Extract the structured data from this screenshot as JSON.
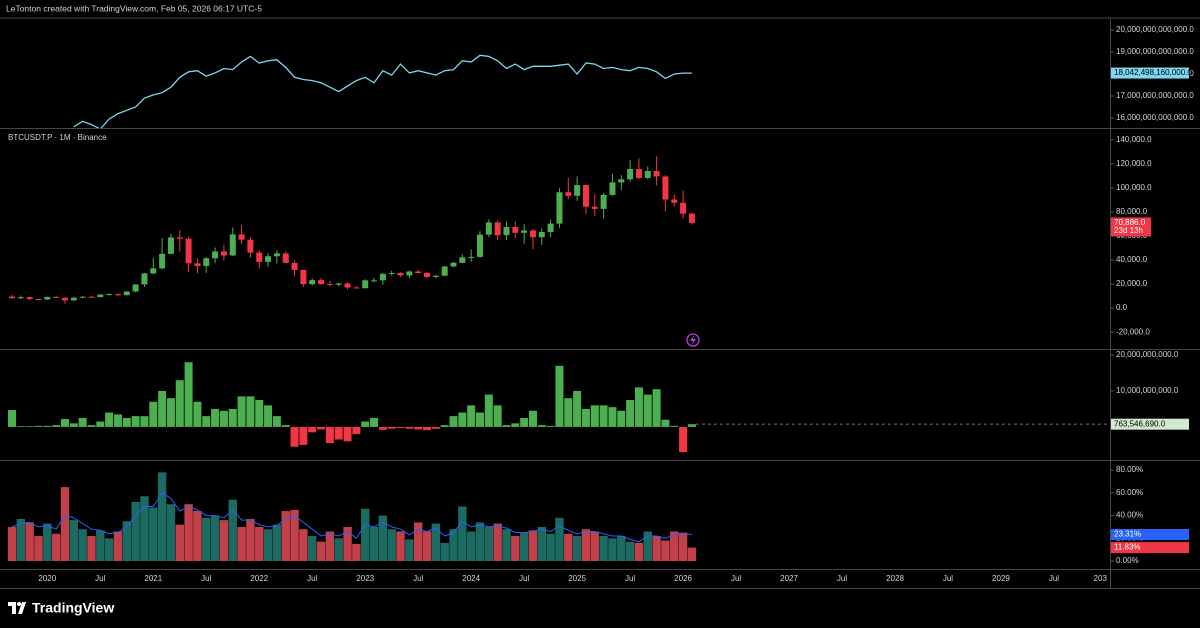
{
  "header": {
    "credit": "LeTonton created with TradingView.com, Feb 05, 2026 06:17 UTC-5"
  },
  "footer": {
    "brand": "TradingView"
  },
  "x_axis": {
    "labels": [
      "2020",
      "Jul",
      "2021",
      "Jul",
      "2022",
      "Jul",
      "2023",
      "Jul",
      "2024",
      "Jul",
      "2025",
      "Jul",
      "2026",
      "Jul",
      "2027",
      "Jul",
      "2028",
      "Jul",
      "2029",
      "Jul",
      "203"
    ]
  },
  "chart_data": [
    {
      "type": "line",
      "color": "#7fd6f0",
      "values": [
        null,
        null,
        null,
        null,
        null,
        null,
        null,
        15600000000000,
        15850000000000,
        15700000000000,
        15500000000000,
        15950000000000,
        16200000000000,
        16350000000000,
        16500000000000,
        16900000000000,
        17050000000000,
        17150000000000,
        17400000000000,
        17850000000000,
        18100000000000,
        18150000000000,
        17900000000000,
        18050000000000,
        18250000000000,
        18200000000000,
        18550000000000,
        18800000000000,
        18500000000000,
        18600000000000,
        18650000000000,
        18300000000000,
        17850000000000,
        17750000000000,
        17700000000000,
        17600000000000,
        17400000000000,
        17200000000000,
        17450000000000,
        17700000000000,
        17850000000000,
        17600000000000,
        18150000000000,
        17950000000000,
        18450000000000,
        18050000000000,
        18150000000000,
        18050000000000,
        17950000000000,
        18150000000000,
        18200000000000,
        18600000000000,
        18550000000000,
        18850000000000,
        18800000000000,
        18600000000000,
        18250000000000,
        18450000000000,
        18200000000000,
        18350000000000,
        18350000000000,
        18350000000000,
        18400000000000,
        18450000000000,
        18000000000000,
        18500000000000,
        18450000000000,
        18250000000000,
        18300000000000,
        18200000000000,
        18150000000000,
        18300000000000,
        18250000000000,
        18100000000000,
        17800000000000,
        18000000000000,
        18040000000000,
        18042498160000
      ],
      "value_label": "18,042,498,160,000.0",
      "ylim": [
        15545000000000,
        20545000000000
      ],
      "yticks": [
        {
          "value": 20000000000000,
          "label": "20,000,000,000,000.0"
        },
        {
          "value": 19000000000000,
          "label": "19,000,000,000,000.0"
        },
        {
          "value": 18000000000000,
          "label": "18,000,000,000,000.0"
        },
        {
          "value": 17000000000000,
          "label": "17,000,000,000,000.0"
        },
        {
          "value": 16000000000000,
          "label": "16,000,000,000,000.0"
        }
      ]
    },
    {
      "type": "candlestick",
      "title": "BTCUSDT.P · 1M · Binance",
      "up_color": "#4caf50",
      "down_color": "#f23645",
      "open": [
        9600,
        8300,
        9150,
        7550,
        7200,
        9350,
        8550,
        6400,
        8650,
        9450,
        9140,
        11350,
        11650,
        10780,
        13800,
        19700,
        28900,
        33100,
        45150,
        58800,
        57700,
        37300,
        35050,
        41460,
        47100,
        43800,
        61300,
        56900,
        46200,
        38450,
        43150,
        45500,
        37640,
        31790,
        19930,
        23300,
        20050,
        19420,
        20490,
        17160,
        16540,
        23120,
        23140,
        28470,
        29230,
        27210,
        30470,
        29230,
        25940,
        26960,
        34640,
        37720,
        42280,
        42580,
        61130,
        71290,
        60670,
        67490,
        62670,
        64620,
        58970,
        63330,
        70290,
        96400,
        93430,
        102400,
        84350,
        82550,
        94200,
        104600,
        107150,
        115750,
        108250,
        114050,
        109550,
        90350,
        87650,
        78600
      ],
      "high": [
        10900,
        10500,
        9500,
        7750,
        9600,
        10500,
        9200,
        9450,
        10100,
        10400,
        11450,
        12480,
        12100,
        14100,
        19900,
        29300,
        41950,
        58350,
        61780,
        64850,
        59600,
        41300,
        42400,
        50500,
        52900,
        67000,
        69000,
        59050,
        47990,
        45800,
        48200,
        47450,
        40000,
        31950,
        24650,
        25200,
        22800,
        21100,
        21450,
        18400,
        23950,
        25250,
        29200,
        31000,
        29850,
        31430,
        31800,
        30200,
        27500,
        35200,
        38450,
        44700,
        48970,
        64000,
        73800,
        72800,
        72000,
        71950,
        70000,
        65600,
        66500,
        73600,
        99800,
        108350,
        109600,
        102750,
        95000,
        95750,
        111950,
        110500,
        123200,
        124500,
        117900,
        126200,
        110600,
        94600,
        97900,
        79300
      ],
      "low": [
        7700,
        7300,
        6500,
        6400,
        6850,
        8450,
        3600,
        6150,
        8100,
        8850,
        8950,
        10550,
        9850,
        10400,
        13200,
        17600,
        28100,
        32300,
        44950,
        47050,
        30000,
        28800,
        29300,
        37300,
        39600,
        43300,
        53250,
        42000,
        32900,
        34300,
        37150,
        37700,
        26700,
        17600,
        18800,
        19550,
        18150,
        18200,
        15500,
        16250,
        16500,
        21350,
        19550,
        26950,
        25800,
        24800,
        28860,
        25100,
        24900,
        26550,
        34100,
        37600,
        38550,
        41880,
        59000,
        56550,
        56500,
        58400,
        53500,
        49000,
        52550,
        58870,
        66800,
        90500,
        89200,
        78250,
        76600,
        74500,
        93350,
        98200,
        105100,
        107300,
        107250,
        102000,
        80600,
        84400,
        74500,
        69500
      ],
      "close": [
        8300,
        9150,
        7550,
        7200,
        9350,
        8550,
        6400,
        8650,
        9450,
        9140,
        11350,
        11650,
        10780,
        13800,
        19700,
        28900,
        33100,
        45150,
        58800,
        57700,
        37300,
        35050,
        41460,
        47100,
        43800,
        61300,
        56900,
        46200,
        38450,
        43150,
        45500,
        37640,
        31790,
        19930,
        23300,
        20050,
        19420,
        20490,
        17160,
        16540,
        23120,
        23140,
        28470,
        29230,
        27210,
        30470,
        29230,
        25940,
        26960,
        34640,
        37720,
        42280,
        42580,
        61130,
        71290,
        60670,
        67490,
        62670,
        64620,
        58970,
        63330,
        70290,
        96400,
        93430,
        102400,
        84350,
        82550,
        94200,
        104600,
        107150,
        115750,
        108250,
        114050,
        109550,
        90350,
        87650,
        78600,
        70886
      ],
      "close_label": "70,886.0",
      "countdown": "23d 13h",
      "ylim": [
        -34000,
        149000
      ],
      "yticks": [
        {
          "value": 140000,
          "label": "140,000.0"
        },
        {
          "value": 120000,
          "label": "120,000.0"
        },
        {
          "value": 100000,
          "label": "100,000.0"
        },
        {
          "value": 80000,
          "label": "80,000.0"
        },
        {
          "value": 60000,
          "label": "60,000.0"
        },
        {
          "value": 40000,
          "label": "40,000.0"
        },
        {
          "value": 20000,
          "label": "20,000.0"
        },
        {
          "value": 0,
          "label": "0.0"
        },
        {
          "value": -20000,
          "label": "-20,000.0"
        }
      ]
    },
    {
      "type": "bar",
      "up_color": "#4caf50",
      "down_color": "#f23645",
      "values": [
        4700000000,
        200000000,
        200000000,
        300000000,
        300000000,
        500000000,
        2200000000,
        1000000000,
        2500000000,
        500000000,
        1500000000,
        4000000000,
        3500000000,
        2500000000,
        3000000000,
        3000000000,
        7000000000,
        10000000000,
        8000000000,
        13000000000,
        18000000000,
        7000000000,
        3000000000,
        5000000000,
        4500000000,
        5000000000,
        8500000000,
        8500000000,
        7500000000,
        6000000000,
        3000000000,
        500000000,
        -5500000000,
        -5000000000,
        -1500000000,
        -700000000,
        -4500000000,
        -3500000000,
        -4000000000,
        -2000000000,
        1500000000,
        2500000000,
        -800000000,
        -500000000,
        -300000000,
        -500000000,
        -700000000,
        -900000000,
        -500000000,
        500000000,
        3000000000,
        4000000000,
        6000000000,
        4000000000,
        9000000000,
        6000000000,
        500000000,
        1000000000,
        2500000000,
        4500000000,
        500000000,
        300000000,
        17000000000,
        8000000000,
        10000000000,
        5000000000,
        6000000000,
        6000000000,
        5500000000,
        4500000000,
        7500000000,
        11000000000,
        9000000000,
        10500000000,
        2000000000,
        300000000,
        -7000000000,
        763546690
      ],
      "value_label": "763,546,690.0",
      "ylim": [
        -9200000000,
        21400000000
      ],
      "yticks": [
        {
          "value": 20000000000,
          "label": "20,000,000,000.0"
        },
        {
          "value": 10000000000,
          "label": "10,000,000,000.0"
        }
      ]
    },
    {
      "type": "bar_line",
      "up_color": "#1b6b62",
      "down_color": "#c2404a",
      "line_color": "#2962ff",
      "value_label_color": "#f23645",
      "line_label_color": "#2962ff",
      "values": [
        30,
        37,
        34,
        22,
        33,
        24,
        65,
        36,
        28,
        22,
        27,
        20,
        26,
        35,
        52,
        57,
        47,
        78,
        50,
        32,
        50,
        44,
        38,
        40,
        36,
        54,
        30,
        37,
        30,
        28,
        32,
        44,
        45,
        28,
        22,
        17,
        26,
        20,
        30,
        15,
        46,
        30,
        40,
        28,
        26,
        19,
        34,
        26,
        33,
        16,
        28,
        48,
        26,
        34,
        30,
        33,
        28,
        22,
        25,
        27,
        30,
        24,
        38,
        24,
        22,
        28,
        26,
        22,
        20,
        22,
        17,
        16,
        26,
        22,
        18,
        26,
        25,
        11.83
      ],
      "line_values": [
        30,
        33,
        34,
        30,
        31,
        28,
        40,
        38,
        33,
        28,
        27,
        24,
        25,
        30,
        40,
        48,
        48,
        60,
        55,
        44,
        48,
        45,
        40,
        40,
        38,
        45,
        36,
        36,
        32,
        30,
        31,
        37,
        40,
        34,
        28,
        22,
        24,
        22,
        26,
        20,
        32,
        30,
        34,
        30,
        28,
        23,
        28,
        26,
        29,
        22,
        25,
        35,
        30,
        32,
        30,
        31,
        29,
        25,
        25,
        26,
        28,
        26,
        31,
        27,
        24,
        26,
        26,
        24,
        22,
        22,
        19,
        17,
        22,
        22,
        20,
        23,
        24,
        23.31
      ],
      "value_label": "11.83%",
      "line_value_label": "23.31%",
      "ylim": [
        -7,
        88
      ],
      "yticks": [
        {
          "value": 80,
          "label": "80.00%"
        },
        {
          "value": 60,
          "label": "60.00%"
        },
        {
          "value": 40,
          "label": "40.00%"
        },
        {
          "value": 20,
          "label": "20.00%"
        },
        {
          "value": 0,
          "label": "0.00%"
        }
      ]
    }
  ]
}
